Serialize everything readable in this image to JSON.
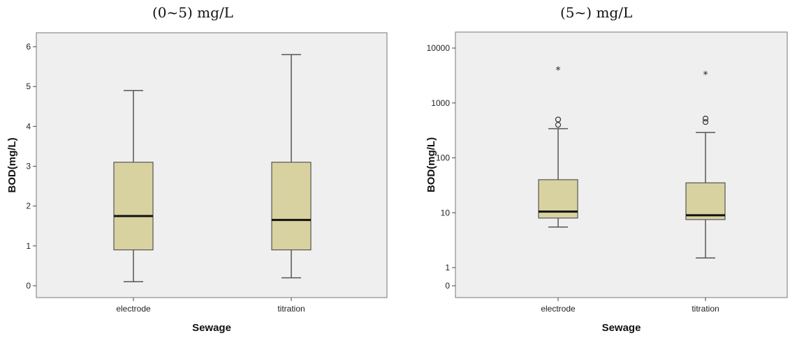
{
  "colors": {
    "plot_background": "#efefef",
    "box_fill": "#d8d2a0",
    "box_stroke": "#555555",
    "median": "#111111",
    "frame": "#777777"
  },
  "chart_data": [
    {
      "type": "box",
      "title": "(0~5) mg/L",
      "xlabel": "Sewage",
      "ylabel": "BOD(mg/L)",
      "ylim": [
        -0.2,
        6.2
      ],
      "yscale": "linear",
      "yticks": [
        0,
        1,
        2,
        3,
        4,
        5,
        6
      ],
      "ytick_labels": [
        "0",
        "1",
        "2",
        "3",
        "4",
        "5",
        "6"
      ],
      "categories": [
        "electrode",
        "titration"
      ],
      "boxes": [
        {
          "category": "electrode",
          "min": 0.1,
          "q1": 0.9,
          "median": 1.75,
          "q3": 3.1,
          "max": 4.9,
          "outliers": []
        },
        {
          "category": "titration",
          "min": 0.2,
          "q1": 0.9,
          "median": 1.65,
          "q3": 3.1,
          "max": 5.8,
          "outliers": []
        }
      ]
    },
    {
      "type": "box",
      "title": "(5~) mg/L",
      "xlabel": "Sewage",
      "ylabel": "BOD(mg/L)",
      "yscale": "log-like",
      "ylim": [
        0,
        10000
      ],
      "yticks": [
        0,
        1,
        10,
        100,
        1000,
        10000
      ],
      "ytick_labels": [
        "0",
        "1",
        "10",
        "100",
        "1000",
        "10000"
      ],
      "categories": [
        "electrode",
        "titration"
      ],
      "boxes": [
        {
          "category": "electrode",
          "min": 5.5,
          "q1": 8,
          "median": 10.5,
          "q3": 40,
          "max": 340,
          "outliers": [
            {
              "value": 400,
              "marker": "o"
            },
            {
              "value": 500,
              "marker": "o"
            },
            {
              "value": 4500,
              "marker": "*"
            }
          ]
        },
        {
          "category": "titration",
          "min": 1.5,
          "q1": 7.5,
          "median": 9,
          "q3": 35,
          "max": 290,
          "outliers": [
            {
              "value": 450,
              "marker": "o"
            },
            {
              "value": 520,
              "marker": "o"
            },
            {
              "value": 3700,
              "marker": "*"
            }
          ]
        }
      ]
    }
  ]
}
